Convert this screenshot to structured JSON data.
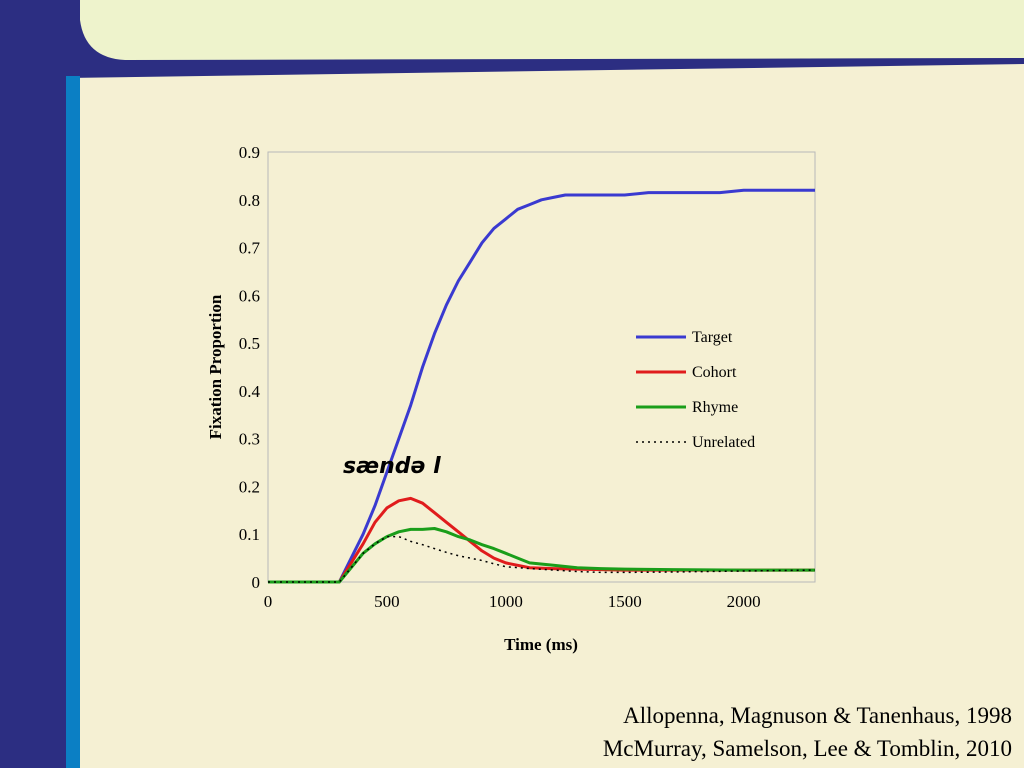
{
  "slide": {
    "colors": {
      "background": "#f5f0d3",
      "sidebar_dark": "#2c2e82",
      "sidebar_light": "#0b7fc4",
      "header": "#eef3cc"
    }
  },
  "chart_data": {
    "type": "line",
    "title": "",
    "xlabel": "Time (ms)",
    "ylabel": "Fixation Proportion",
    "xlim": [
      0,
      2300
    ],
    "ylim": [
      0,
      0.9
    ],
    "xticks": [
      0,
      500,
      1000,
      1500,
      2000
    ],
    "yticks": [
      0,
      0.1,
      0.2,
      0.3,
      0.4,
      0.5,
      0.6,
      0.7,
      0.8,
      0.9
    ],
    "grid": false,
    "legend_position": "right",
    "annotation": "sændə l",
    "series": [
      {
        "name": "Target",
        "color": "#3a3ad0",
        "style": "solid",
        "x": [
          0,
          300,
          350,
          400,
          450,
          500,
          550,
          600,
          650,
          700,
          750,
          800,
          850,
          900,
          950,
          1000,
          1050,
          1100,
          1150,
          1200,
          1250,
          1300,
          1400,
          1500,
          1600,
          1700,
          1800,
          1900,
          2000,
          2100,
          2200,
          2300
        ],
        "y": [
          0,
          0,
          0.05,
          0.1,
          0.16,
          0.23,
          0.3,
          0.37,
          0.45,
          0.52,
          0.58,
          0.63,
          0.67,
          0.71,
          0.74,
          0.76,
          0.78,
          0.79,
          0.8,
          0.805,
          0.81,
          0.81,
          0.81,
          0.81,
          0.815,
          0.815,
          0.815,
          0.815,
          0.82,
          0.82,
          0.82,
          0.82
        ]
      },
      {
        "name": "Cohort",
        "color": "#e01c1c",
        "style": "solid",
        "x": [
          0,
          300,
          350,
          400,
          450,
          500,
          550,
          600,
          650,
          700,
          750,
          800,
          850,
          900,
          950,
          1000,
          1050,
          1100,
          1200,
          1300,
          1400,
          1500,
          1700,
          2000,
          2300
        ],
        "y": [
          0,
          0,
          0.04,
          0.08,
          0.125,
          0.155,
          0.17,
          0.175,
          0.165,
          0.145,
          0.125,
          0.105,
          0.085,
          0.065,
          0.05,
          0.04,
          0.035,
          0.03,
          0.028,
          0.027,
          0.026,
          0.025,
          0.025,
          0.025,
          0.025
        ]
      },
      {
        "name": "Rhyme",
        "color": "#1a9e1a",
        "style": "solid",
        "x": [
          0,
          300,
          350,
          400,
          450,
          500,
          550,
          600,
          650,
          700,
          750,
          800,
          850,
          900,
          950,
          1000,
          1050,
          1100,
          1200,
          1300,
          1400,
          1500,
          1700,
          2000,
          2300
        ],
        "y": [
          0,
          0,
          0.03,
          0.06,
          0.08,
          0.095,
          0.105,
          0.11,
          0.11,
          0.112,
          0.105,
          0.095,
          0.088,
          0.078,
          0.07,
          0.06,
          0.05,
          0.04,
          0.035,
          0.03,
          0.028,
          0.027,
          0.026,
          0.025,
          0.025
        ]
      },
      {
        "name": "Unrelated",
        "color": "#000000",
        "style": "dotted",
        "x": [
          0,
          300,
          350,
          400,
          450,
          500,
          550,
          600,
          650,
          700,
          750,
          800,
          850,
          900,
          950,
          1000,
          1100,
          1200,
          1300,
          1400,
          1500,
          1700,
          2000,
          2300
        ],
        "y": [
          0,
          0,
          0.03,
          0.06,
          0.08,
          0.095,
          0.095,
          0.085,
          0.078,
          0.07,
          0.062,
          0.055,
          0.05,
          0.045,
          0.038,
          0.032,
          0.028,
          0.025,
          0.022,
          0.02,
          0.02,
          0.021,
          0.023,
          0.025
        ]
      }
    ]
  },
  "citations": [
    "Allopenna, Magnuson & Tanenhaus, 1998",
    "McMurray, Samelson, Lee & Tomblin, 2010"
  ]
}
